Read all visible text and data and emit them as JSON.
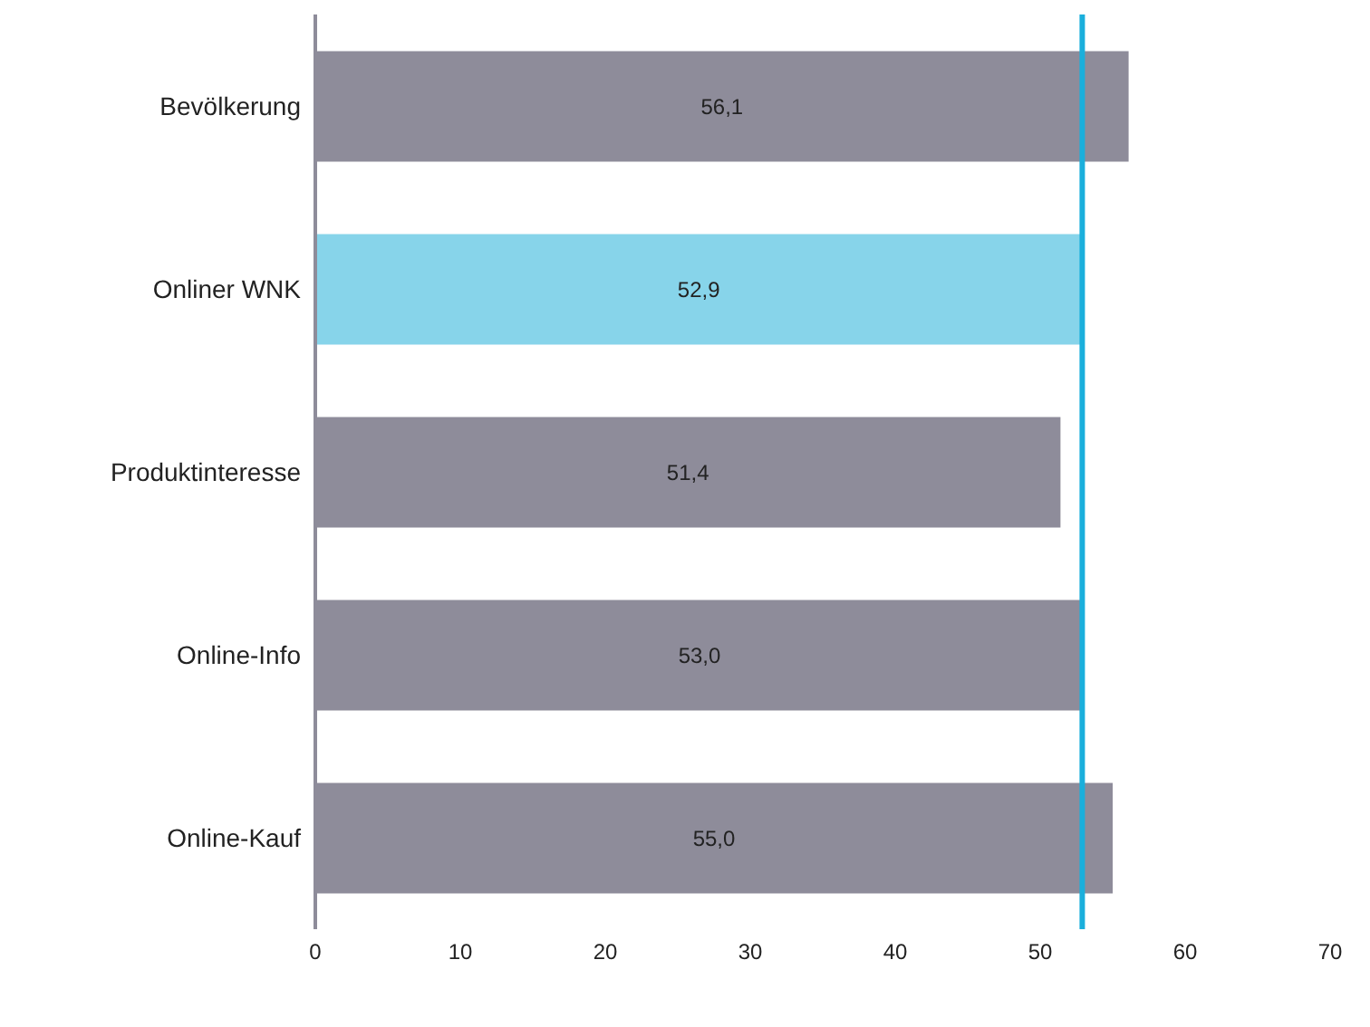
{
  "chart_data": {
    "type": "bar",
    "orientation": "horizontal",
    "categories": [
      "Bevölkerung",
      "Onliner WNK",
      "Produktinteresse",
      "Online-Info",
      "Online-Kauf"
    ],
    "values": [
      56.1,
      52.9,
      51.4,
      53.0,
      55.0
    ],
    "colors": [
      "#8e8c9a",
      "#87d4ea",
      "#8e8c9a",
      "#8e8c9a",
      "#8e8c9a"
    ],
    "value_labels": [
      "56,1",
      "52,9",
      "51,4",
      "53,0",
      "55,0"
    ],
    "xlim": [
      0,
      70
    ],
    "xticks": [
      0,
      10,
      20,
      30,
      40,
      50,
      60,
      70
    ],
    "ref_lines": [
      {
        "axis": "x",
        "value": 52.9,
        "color": "#1aafdc"
      }
    ],
    "grid": false,
    "legend": false
  }
}
